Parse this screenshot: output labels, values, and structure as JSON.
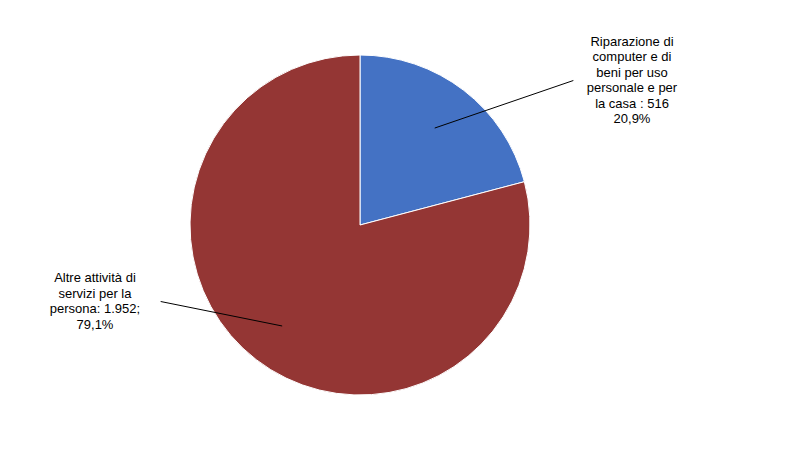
{
  "chart_data": {
    "type": "pie",
    "categories": [
      "Riparazione di\ncomputer e di\nbeni per uso\npersonale e per\nla casa : 516\n20,9%",
      "Altre attività di\nservizi per la\npersona: 1.952;\n79,1%"
    ],
    "values": [
      20.9,
      79.1
    ],
    "colors": [
      "#4472C4",
      "#943634"
    ]
  }
}
